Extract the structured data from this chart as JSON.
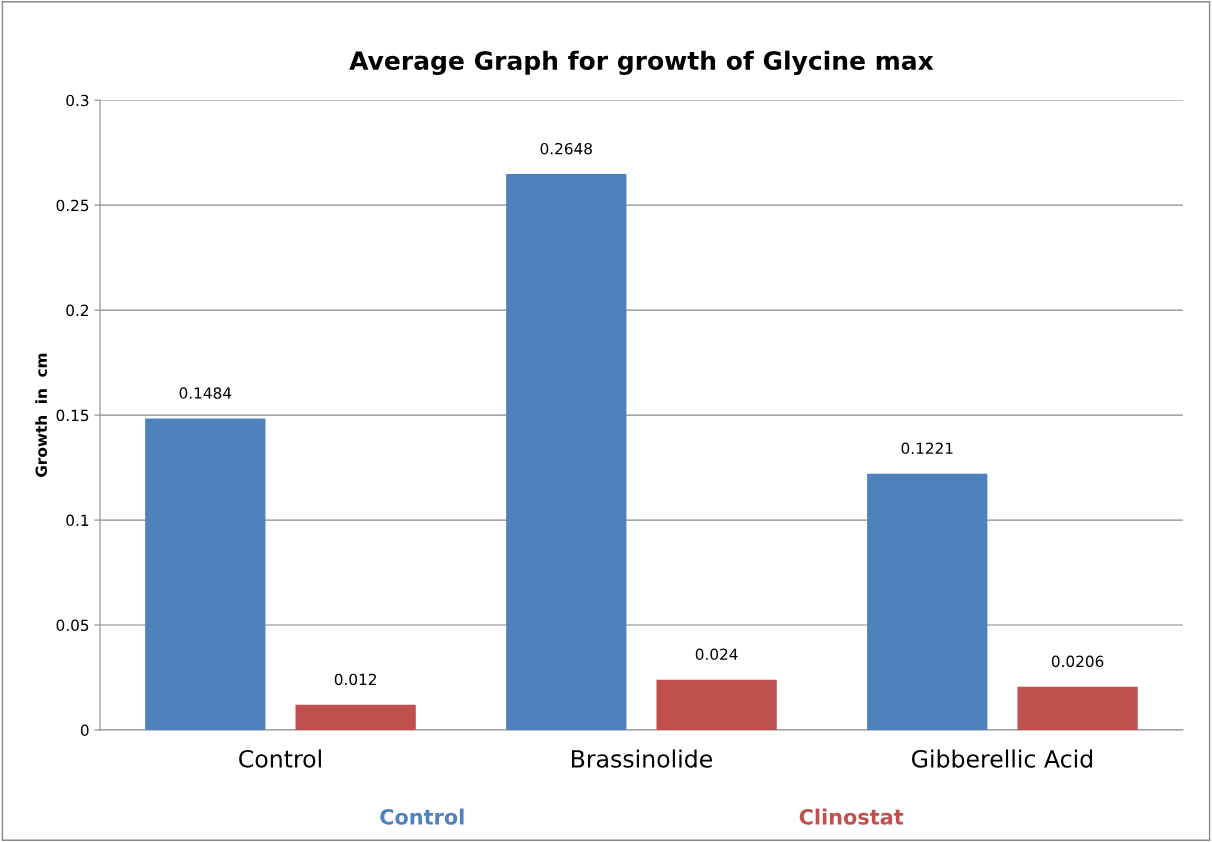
{
  "chart_data": {
    "type": "bar",
    "title": "Average Graph for growth of Glycine max",
    "ylabel": "Growth  in  cm",
    "categories": [
      "Control",
      "Brassinolide",
      "Gibberellic Acid"
    ],
    "series": [
      {
        "name": "Control",
        "color": "#4f81bd",
        "values": [
          0.1484,
          0.2648,
          0.1221
        ]
      },
      {
        "name": "Clinostat",
        "color": "#c0504d",
        "values": [
          0.012,
          0.024,
          0.0206
        ]
      }
    ],
    "ylim": [
      0,
      0.3
    ],
    "yticks": [
      0,
      0.05,
      0.1,
      0.15,
      0.2,
      0.25,
      0.3
    ],
    "grid": "y",
    "data_labels": true,
    "legend": "bottom"
  }
}
